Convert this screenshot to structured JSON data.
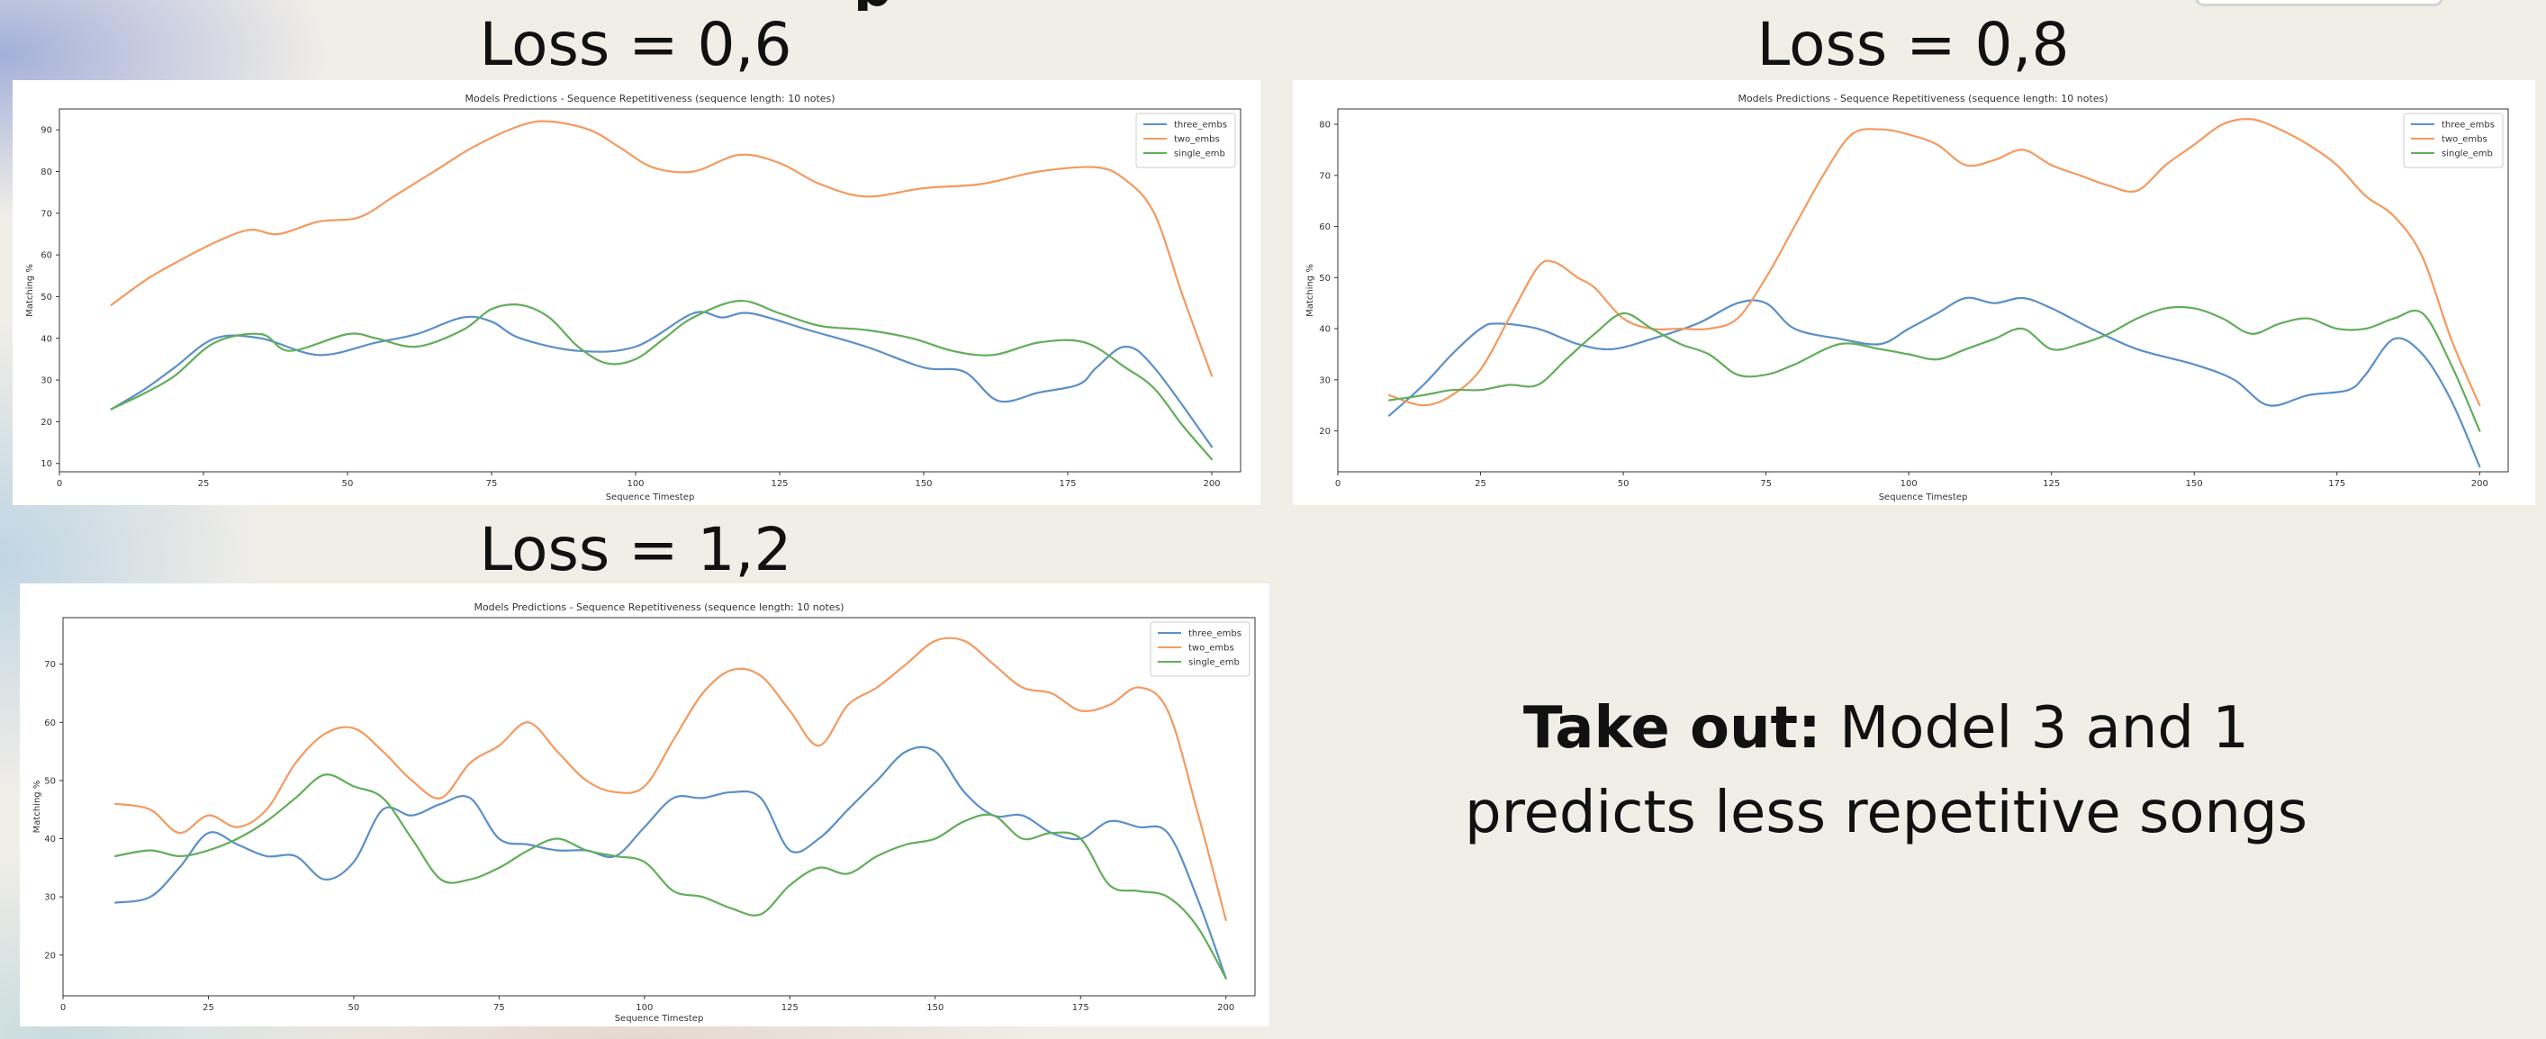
{
  "slide": {
    "top_glyph": "p",
    "loss_titles": [
      "Loss = 0,6",
      "Loss = 0,8",
      "Loss = 1,2"
    ],
    "takeaway": {
      "label": "Take out:",
      "text": "Model 3 and 1 predicts less repetitive songs"
    },
    "colors": {
      "three_embs": "#5b8fc7",
      "two_embs": "#f39a5f",
      "single_emb": "#62ad5a"
    }
  },
  "chart_data": [
    {
      "type": "line",
      "title": "Models Predictions - Sequence Repetitiveness (sequence length: 10 notes)",
      "xlabel": "Sequence Timestep",
      "ylabel": "Matching %",
      "xlim": [
        0,
        205
      ],
      "ylim": [
        8,
        95
      ],
      "xticks": [
        0,
        25,
        50,
        75,
        100,
        125,
        150,
        175,
        200
      ],
      "yticks": [
        10,
        20,
        30,
        40,
        50,
        60,
        70,
        80,
        90
      ],
      "legend": "top-right",
      "grid": false,
      "series": [
        {
          "name": "three_embs",
          "x": [
            9,
            15,
            20,
            27,
            35,
            45,
            55,
            62,
            70,
            75,
            80,
            90,
            100,
            110,
            115,
            120,
            130,
            140,
            150,
            157,
            163,
            170,
            177,
            180,
            185,
            190,
            200
          ],
          "y": [
            23,
            28,
            33,
            40,
            40,
            36,
            39,
            41,
            45,
            44,
            40,
            37,
            38,
            46,
            45,
            46,
            42,
            38,
            33,
            32,
            25,
            27,
            29,
            33,
            38,
            33,
            14
          ]
        },
        {
          "name": "two_embs",
          "x": [
            9,
            15,
            20,
            27,
            33,
            38,
            45,
            52,
            58,
            65,
            72,
            80,
            85,
            92,
            97,
            103,
            110,
            118,
            125,
            132,
            140,
            150,
            160,
            170,
            180,
            185,
            190,
            195,
            200
          ],
          "y": [
            48,
            54,
            58,
            63,
            66,
            65,
            68,
            69,
            74,
            80,
            86,
            91,
            92,
            90,
            86,
            81,
            80,
            84,
            82,
            77,
            74,
            76,
            77,
            80,
            81,
            78,
            70,
            50,
            31
          ]
        },
        {
          "name": "single_emb",
          "x": [
            9,
            15,
            20,
            27,
            35,
            40,
            50,
            55,
            62,
            70,
            75,
            80,
            85,
            90,
            95,
            100,
            105,
            110,
            118,
            125,
            132,
            140,
            148,
            155,
            162,
            170,
            178,
            185,
            190,
            195,
            200
          ],
          "y": [
            23,
            27,
            31,
            39,
            41,
            37,
            41,
            40,
            38,
            42,
            47,
            48,
            45,
            38,
            34,
            35,
            40,
            45,
            49,
            46,
            43,
            42,
            40,
            37,
            36,
            39,
            39,
            33,
            28,
            19,
            11
          ]
        }
      ]
    },
    {
      "type": "line",
      "title": "Models Predictions - Sequence Repetitiveness (sequence length: 10 notes)",
      "xlabel": "Sequence Timestep",
      "ylabel": "Matching %",
      "xlim": [
        0,
        205
      ],
      "ylim": [
        12,
        83
      ],
      "xticks": [
        0,
        25,
        50,
        75,
        100,
        125,
        150,
        175,
        200
      ],
      "yticks": [
        20,
        30,
        40,
        50,
        60,
        70,
        80
      ],
      "legend": "top-right",
      "grid": false,
      "series": [
        {
          "name": "three_embs",
          "x": [
            9,
            15,
            20,
            25,
            28,
            35,
            42,
            48,
            55,
            63,
            70,
            75,
            80,
            88,
            95,
            100,
            105,
            110,
            115,
            120,
            125,
            132,
            140,
            150,
            157,
            163,
            170,
            177,
            180,
            185,
            190,
            195,
            200
          ],
          "y": [
            23,
            29,
            35,
            40,
            41,
            40,
            37,
            36,
            38,
            41,
            45,
            45,
            40,
            38,
            37,
            40,
            43,
            46,
            45,
            46,
            44,
            40,
            36,
            33,
            30,
            25,
            27,
            28,
            31,
            38,
            35,
            26,
            13
          ]
        },
        {
          "name": "two_embs",
          "x": [
            9,
            15,
            20,
            25,
            30,
            35,
            38,
            42,
            45,
            50,
            55,
            60,
            65,
            70,
            75,
            80,
            85,
            90,
            95,
            100,
            105,
            110,
            115,
            120,
            125,
            130,
            135,
            140,
            145,
            150,
            155,
            160,
            165,
            170,
            175,
            180,
            185,
            190,
            195,
            200
          ],
          "y": [
            27,
            25,
            27,
            32,
            42,
            52,
            53,
            50,
            48,
            42,
            40,
            40,
            40,
            42,
            50,
            60,
            70,
            78,
            79,
            78,
            76,
            72,
            73,
            75,
            72,
            70,
            68,
            67,
            72,
            76,
            80,
            81,
            79,
            76,
            72,
            66,
            62,
            54,
            38,
            25
          ]
        },
        {
          "name": "single_emb",
          "x": [
            9,
            15,
            20,
            25,
            30,
            35,
            40,
            45,
            50,
            55,
            60,
            65,
            70,
            75,
            80,
            88,
            95,
            100,
            105,
            110,
            115,
            120,
            125,
            130,
            135,
            140,
            145,
            150,
            155,
            160,
            165,
            170,
            175,
            180,
            185,
            190,
            195,
            200
          ],
          "y": [
            26,
            27,
            28,
            28,
            29,
            29,
            34,
            39,
            43,
            40,
            37,
            35,
            31,
            31,
            33,
            37,
            36,
            35,
            34,
            36,
            38,
            40,
            36,
            37,
            39,
            42,
            44,
            44,
            42,
            39,
            41,
            42,
            40,
            40,
            42,
            43,
            33,
            20
          ]
        }
      ]
    },
    {
      "type": "line",
      "title": "Models Predictions - Sequence Repetitiveness (sequence length: 10 notes)",
      "xlabel": "Sequence Timestep",
      "ylabel": "Matching %",
      "xlim": [
        0,
        205
      ],
      "ylim": [
        13,
        78
      ],
      "xticks": [
        0,
        25,
        50,
        75,
        100,
        125,
        150,
        175,
        200
      ],
      "yticks": [
        20,
        30,
        40,
        50,
        60,
        70
      ],
      "legend": "top-right",
      "grid": false,
      "series": [
        {
          "name": "three_embs",
          "x": [
            9,
            15,
            20,
            25,
            30,
            35,
            40,
            45,
            50,
            55,
            60,
            65,
            70,
            75,
            80,
            85,
            90,
            95,
            100,
            105,
            110,
            115,
            120,
            125,
            130,
            135,
            140,
            145,
            150,
            155,
            160,
            165,
            170,
            175,
            180,
            185,
            190,
            195,
            200
          ],
          "y": [
            29,
            30,
            35,
            41,
            39,
            37,
            37,
            33,
            36,
            45,
            44,
            46,
            47,
            40,
            39,
            38,
            38,
            37,
            42,
            47,
            47,
            48,
            47,
            38,
            40,
            45,
            50,
            55,
            55,
            48,
            44,
            44,
            41,
            40,
            43,
            42,
            41,
            30,
            16
          ]
        },
        {
          "name": "two_embs",
          "x": [
            9,
            15,
            20,
            25,
            30,
            35,
            40,
            45,
            50,
            55,
            60,
            65,
            70,
            75,
            80,
            85,
            90,
            95,
            100,
            105,
            110,
            115,
            120,
            125,
            130,
            135,
            140,
            145,
            150,
            155,
            160,
            165,
            170,
            175,
            180,
            185,
            190,
            195,
            200
          ],
          "y": [
            46,
            45,
            41,
            44,
            42,
            45,
            53,
            58,
            59,
            55,
            50,
            47,
            53,
            56,
            60,
            55,
            50,
            48,
            49,
            57,
            65,
            69,
            68,
            62,
            56,
            63,
            66,
            70,
            74,
            74,
            70,
            66,
            65,
            62,
            63,
            66,
            62,
            45,
            26
          ]
        },
        {
          "name": "single_emb",
          "x": [
            9,
            15,
            20,
            25,
            30,
            35,
            40,
            45,
            50,
            55,
            60,
            65,
            70,
            75,
            80,
            85,
            90,
            95,
            100,
            105,
            110,
            115,
            120,
            125,
            130,
            135,
            140,
            145,
            150,
            155,
            160,
            165,
            170,
            175,
            180,
            185,
            190,
            195,
            200
          ],
          "y": [
            37,
            38,
            37,
            38,
            40,
            43,
            47,
            51,
            49,
            47,
            40,
            33,
            33,
            35,
            38,
            40,
            38,
            37,
            36,
            31,
            30,
            28,
            27,
            32,
            35,
            34,
            37,
            39,
            40,
            43,
            44,
            40,
            41,
            40,
            32,
            31,
            30,
            25,
            16
          ]
        }
      ]
    }
  ]
}
